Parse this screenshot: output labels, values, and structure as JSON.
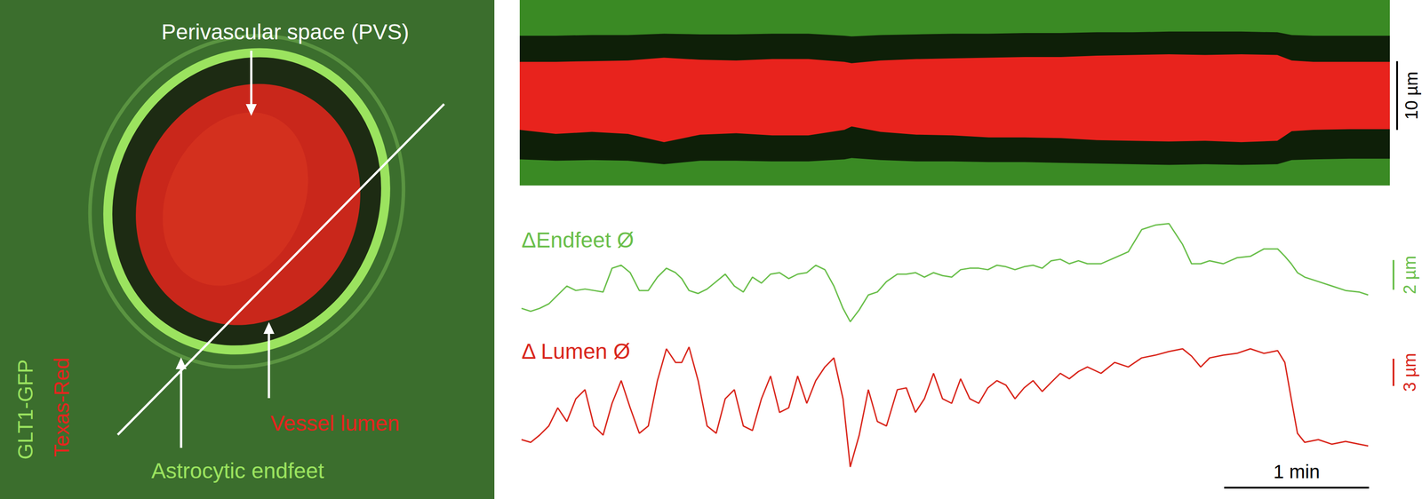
{
  "image": {
    "labels": {
      "pvs": "Perivascular space (PVS)",
      "endfeet": "Astrocytic endfeet",
      "lumen": "Vessel lumen"
    },
    "channels": [
      {
        "name": "GLT1-GFP",
        "color": "#9be35f"
      },
      {
        "name": "Texas-Red",
        "color": "#e8231d"
      }
    ]
  },
  "kymograph": {
    "type": "area",
    "x": [
      0,
      0.25,
      0.5,
      0.75,
      1.0,
      1.25,
      1.5,
      1.75,
      2.0,
      2.25,
      2.3,
      2.5,
      2.75,
      3.0,
      3.25,
      3.5,
      3.75,
      4.0,
      4.25,
      4.5,
      4.75,
      5.0,
      5.25,
      5.35,
      5.5,
      5.75,
      6.03
    ],
    "lumen_top": [
      9.0,
      9.0,
      8.9,
      8.8,
      8.4,
      8.7,
      8.8,
      8.6,
      8.6,
      9.0,
      9.2,
      8.8,
      8.6,
      8.5,
      8.4,
      8.3,
      8.3,
      8.1,
      8.0,
      7.9,
      8.0,
      7.9,
      8.0,
      8.8,
      9.0,
      9.0,
      9.0
    ],
    "lumen_bottom": [
      18.9,
      19.5,
      19.2,
      19.5,
      20.7,
      19.6,
      19.4,
      19.7,
      19.7,
      18.9,
      18.4,
      19.2,
      19.6,
      19.7,
      20.0,
      20.0,
      20.1,
      20.4,
      20.5,
      20.6,
      20.5,
      20.7,
      20.5,
      19.1,
      18.9,
      18.8,
      18.8
    ],
    "endfeet_inner_top": [
      5.2,
      5.2,
      5.1,
      5.1,
      4.9,
      5.0,
      5.0,
      4.9,
      4.9,
      5.2,
      5.3,
      5.1,
      5.0,
      4.9,
      4.9,
      4.8,
      4.8,
      4.7,
      4.7,
      4.6,
      4.6,
      4.6,
      4.7,
      5.1,
      5.2,
      5.2,
      5.2
    ],
    "endfeet_inner_bottom": [
      23.2,
      23.4,
      23.3,
      23.4,
      23.9,
      23.4,
      23.4,
      23.5,
      23.5,
      23.2,
      23.0,
      23.3,
      23.5,
      23.5,
      23.6,
      23.6,
      23.7,
      23.8,
      23.9,
      24.0,
      23.9,
      24.0,
      23.9,
      23.3,
      23.2,
      23.1,
      23.1
    ],
    "xlim": [
      0,
      6.03
    ],
    "ylim": [
      0,
      27
    ],
    "tick_labels": false,
    "scale_bar": {
      "value": 10,
      "label": "10 µm"
    }
  },
  "chart_data": [
    {
      "type": "line",
      "title": "ΔEndfeet Ø",
      "color": "#6abf4b",
      "tick_labels": false,
      "xlim": [
        0,
        5.85
      ],
      "ylim": [
        0,
        7.0
      ],
      "x": [
        0,
        0.063,
        0.125,
        0.188,
        0.25,
        0.313,
        0.375,
        0.438,
        0.5,
        0.563,
        0.625,
        0.688,
        0.75,
        0.813,
        0.875,
        0.938,
        1.0,
        1.063,
        1.106,
        1.156,
        1.219,
        1.281,
        1.344,
        1.406,
        1.469,
        1.531,
        1.594,
        1.656,
        1.719,
        1.781,
        1.844,
        1.906,
        1.969,
        2.031,
        2.094,
        2.156,
        2.219,
        2.269,
        2.331,
        2.394,
        2.456,
        2.519,
        2.594,
        2.656,
        2.719,
        2.781,
        2.844,
        2.906,
        2.969,
        3.031,
        3.094,
        3.156,
        3.219,
        3.281,
        3.344,
        3.406,
        3.469,
        3.531,
        3.594,
        3.656,
        3.719,
        3.781,
        3.844,
        3.906,
        4.0,
        4.094,
        4.188,
        4.281,
        4.375,
        4.469,
        4.563,
        4.625,
        4.688,
        4.75,
        4.844,
        4.938,
        5.031,
        5.125,
        5.219,
        5.269,
        5.313,
        5.356,
        5.406,
        5.5,
        5.594,
        5.688,
        5.781,
        5.844
      ],
      "values": [
        1.2,
        1.0,
        1.2,
        1.5,
        2.1,
        2.7,
        2.4,
        2.5,
        2.4,
        2.3,
        3.9,
        4.1,
        3.6,
        2.4,
        2.4,
        3.3,
        3.9,
        3.6,
        3.2,
        2.4,
        2.2,
        2.5,
        3.0,
        3.5,
        2.7,
        2.3,
        3.3,
        2.9,
        3.5,
        3.6,
        3.2,
        3.5,
        3.6,
        4.1,
        3.8,
        2.7,
        1.2,
        0.3,
        1.1,
        2.1,
        2.3,
        3.0,
        3.5,
        3.5,
        3.6,
        3.3,
        3.6,
        3.4,
        3.3,
        3.8,
        3.9,
        3.9,
        3.8,
        4.1,
        4.0,
        3.8,
        4.0,
        4.1,
        3.9,
        4.4,
        4.5,
        4.2,
        4.4,
        4.2,
        4.2,
        4.6,
        5.0,
        6.5,
        6.8,
        6.9,
        5.5,
        4.2,
        4.2,
        4.4,
        4.2,
        4.6,
        4.7,
        5.2,
        5.2,
        4.7,
        4.2,
        3.6,
        3.3,
        3.0,
        2.7,
        2.4,
        2.3,
        2.1
      ],
      "scale_bar": {
        "value": 2,
        "label": "2 µm"
      }
    },
    {
      "type": "line",
      "title": "Δ Lumen Ø",
      "color": "#d9261c",
      "tick_labels": false,
      "xlim": [
        0,
        5.85
      ],
      "ylim": [
        0,
        13.5
      ],
      "x": [
        0,
        0.063,
        0.125,
        0.188,
        0.25,
        0.313,
        0.375,
        0.438,
        0.5,
        0.563,
        0.625,
        0.688,
        0.75,
        0.813,
        0.875,
        0.938,
        1.0,
        1.063,
        1.106,
        1.156,
        1.219,
        1.281,
        1.344,
        1.406,
        1.469,
        1.531,
        1.594,
        1.656,
        1.719,
        1.781,
        1.844,
        1.906,
        1.969,
        2.031,
        2.094,
        2.156,
        2.219,
        2.269,
        2.331,
        2.394,
        2.456,
        2.519,
        2.594,
        2.656,
        2.719,
        2.781,
        2.844,
        2.906,
        2.969,
        3.031,
        3.094,
        3.156,
        3.219,
        3.281,
        3.344,
        3.406,
        3.469,
        3.531,
        3.594,
        3.656,
        3.719,
        3.781,
        3.844,
        3.906,
        4.0,
        4.094,
        4.188,
        4.281,
        4.375,
        4.469,
        4.563,
        4.625,
        4.688,
        4.75,
        4.844,
        4.938,
        5.031,
        5.125,
        5.219,
        5.269,
        5.313,
        5.356,
        5.406,
        5.5,
        5.594,
        5.688,
        5.781,
        5.844
      ],
      "values": [
        3.0,
        2.7,
        3.5,
        4.5,
        6.5,
        5.0,
        7.5,
        8.5,
        4.5,
        3.5,
        7.0,
        9.5,
        6.5,
        3.7,
        4.5,
        9.5,
        13.0,
        11.5,
        11.5,
        13.2,
        9.5,
        4.5,
        3.7,
        7.5,
        8.5,
        4.5,
        4.0,
        7.5,
        10.0,
        6.0,
        6.5,
        10.0,
        7.0,
        9.5,
        11.0,
        12.0,
        7.5,
        0.0,
        3.5,
        8.5,
        5.0,
        4.5,
        8.5,
        8.7,
        6.0,
        7.5,
        10.3,
        7.5,
        7.0,
        9.7,
        7.5,
        7.0,
        8.7,
        9.5,
        9.0,
        7.5,
        8.7,
        9.5,
        8.3,
        9.3,
        10.3,
        9.7,
        10.5,
        11.0,
        10.3,
        11.5,
        11.0,
        12.0,
        12.3,
        12.7,
        13.0,
        12.2,
        11.0,
        12.0,
        12.3,
        12.5,
        13.0,
        12.5,
        12.8,
        11.5,
        7.5,
        3.7,
        2.7,
        3.0,
        2.5,
        2.8,
        2.5,
        2.3
      ],
      "scale_bar": {
        "value": 3,
        "label": "3 µm"
      },
      "time_scale_bar": {
        "value": 1,
        "label": "1 min"
      }
    }
  ]
}
